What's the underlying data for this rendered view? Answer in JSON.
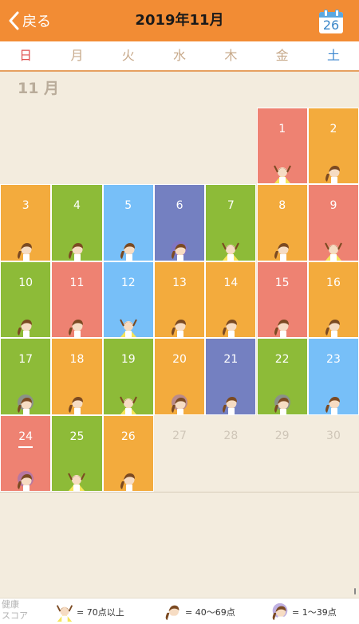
{
  "header": {
    "back_label": "戻る",
    "title": "2019年11月",
    "calendar_day": "26"
  },
  "weekdays": [
    "日",
    "月",
    "火",
    "水",
    "木",
    "金",
    "土"
  ],
  "month_label": "11 月",
  "colors": {
    "red": "#ee8272",
    "orange": "#f3ab3d",
    "green": "#8dbb38",
    "blue": "#77bff8",
    "purple": "#7480c1",
    "header": "#f28c34"
  },
  "calendar": {
    "first_weekday": 5,
    "today": 24,
    "days": [
      {
        "day": "1",
        "color": "red",
        "mood": "up"
      },
      {
        "day": "2",
        "color": "orange",
        "mood": "mid"
      },
      {
        "day": "3",
        "color": "orange",
        "mood": "mid"
      },
      {
        "day": "4",
        "color": "green",
        "mood": "mid"
      },
      {
        "day": "5",
        "color": "blue",
        "mood": "mid"
      },
      {
        "day": "6",
        "color": "purple",
        "mood": "low"
      },
      {
        "day": "7",
        "color": "green",
        "mood": "up"
      },
      {
        "day": "8",
        "color": "orange",
        "mood": "mid"
      },
      {
        "day": "9",
        "color": "red",
        "mood": "up"
      },
      {
        "day": "10",
        "color": "green",
        "mood": "mid"
      },
      {
        "day": "11",
        "color": "red",
        "mood": "mid"
      },
      {
        "day": "12",
        "color": "blue",
        "mood": "up"
      },
      {
        "day": "13",
        "color": "orange",
        "mood": "mid"
      },
      {
        "day": "14",
        "color": "orange",
        "mood": "mid"
      },
      {
        "day": "15",
        "color": "red",
        "mood": "mid"
      },
      {
        "day": "16",
        "color": "orange",
        "mood": "mid"
      },
      {
        "day": "17",
        "color": "green",
        "mood": "low"
      },
      {
        "day": "18",
        "color": "orange",
        "mood": "mid"
      },
      {
        "day": "19",
        "color": "green",
        "mood": "up"
      },
      {
        "day": "20",
        "color": "orange",
        "mood": "low"
      },
      {
        "day": "21",
        "color": "purple",
        "mood": "mid"
      },
      {
        "day": "22",
        "color": "green",
        "mood": "low"
      },
      {
        "day": "23",
        "color": "blue",
        "mood": "mid"
      },
      {
        "day": "24",
        "color": "red",
        "mood": "low"
      },
      {
        "day": "25",
        "color": "green",
        "mood": "up"
      },
      {
        "day": "26",
        "color": "orange",
        "mood": "mid"
      },
      {
        "day": "27",
        "color": "none",
        "mood": "none"
      },
      {
        "day": "28",
        "color": "none",
        "mood": "none"
      },
      {
        "day": "29",
        "color": "none",
        "mood": "none"
      },
      {
        "day": "30",
        "color": "none",
        "mood": "none"
      }
    ]
  },
  "footer": {
    "score_label_line1": "健康",
    "score_label_line2": "スコア",
    "legend": [
      {
        "icon": "cheering-girl-icon",
        "text": "= 70点以上"
      },
      {
        "icon": "girl-icon",
        "text": "= 40〜69点"
      },
      {
        "icon": "gloomy-girl-icon",
        "text": "= 1〜39点"
      }
    ]
  }
}
